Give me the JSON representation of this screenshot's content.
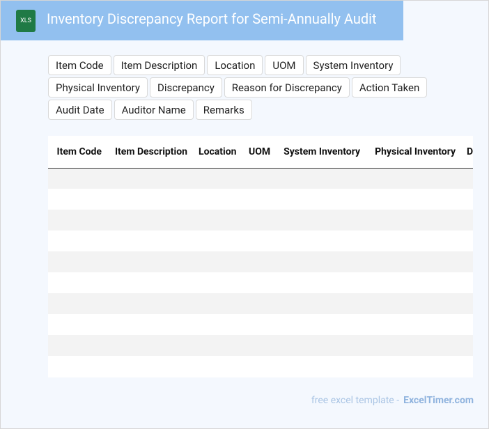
{
  "header": {
    "icon_label": "XLS",
    "title": "Inventory Discrepancy Report for Semi-Annually Audit"
  },
  "fields": [
    "Item Code",
    "Item Description",
    "Location",
    "UOM",
    "System Inventory",
    "Physical Inventory",
    "Discrepancy",
    "Reason for Discrepancy",
    "Action Taken",
    "Audit Date",
    "Auditor Name",
    "Remarks"
  ],
  "table": {
    "columns": [
      "Item Code",
      "Item Description",
      "Location",
      "UOM",
      "System Inventory",
      "Physical Inventory",
      "Discrepancy"
    ]
  },
  "footer": {
    "text": "free excel template -",
    "brand": "ExcelTimer.com"
  }
}
